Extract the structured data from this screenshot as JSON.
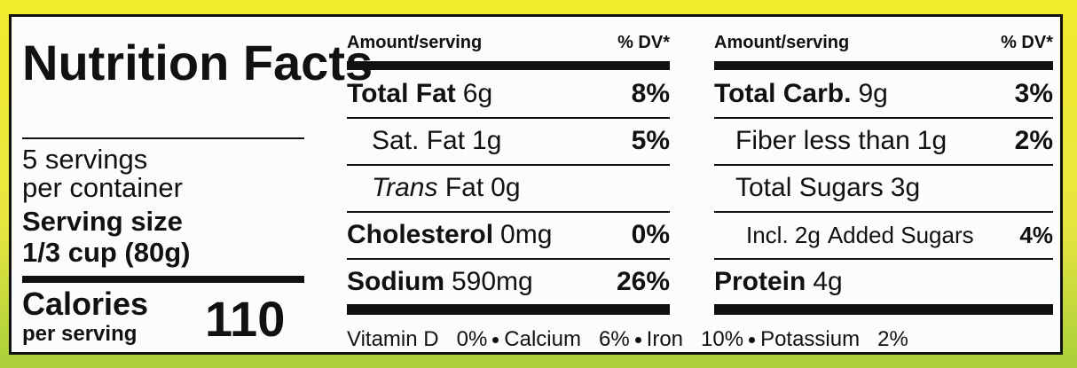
{
  "title": "Nutrition Facts",
  "servings": {
    "line1": "5 servings",
    "line2": "per container"
  },
  "serving_size": {
    "label": "Serving size",
    "value": "1/3 cup (80g)"
  },
  "calories": {
    "label": "Calories",
    "sub": "per serving",
    "value": "110"
  },
  "columns": [
    {
      "header": {
        "amount": "Amount/serving",
        "dv": "% DV*"
      },
      "rows": [
        {
          "name": "Total Fat",
          "amount": "6g",
          "dv": "8%"
        },
        {
          "name": "Sat. Fat",
          "amount": "1g",
          "dv": "5%"
        },
        {
          "name_italic": "Trans",
          "name": "Fat",
          "amount": "0g"
        },
        {
          "name": "Cholesterol",
          "amount": "0mg",
          "dv": "0%"
        },
        {
          "name": "Sodium",
          "amount": "590mg",
          "dv": "26%"
        }
      ]
    },
    {
      "header": {
        "amount": "Amount/serving",
        "dv": "% DV*"
      },
      "rows": [
        {
          "name": "Total Carb.",
          "amount": "9g",
          "dv": "3%"
        },
        {
          "name": "Fiber less than",
          "amount": "1g",
          "dv": "2%"
        },
        {
          "name": "Total Sugars",
          "amount": "3g"
        },
        {
          "name": "Incl. 2g",
          "amount": "Added Sugars",
          "dv": "4%"
        },
        {
          "name": "Protein",
          "amount": "4g"
        }
      ]
    }
  ],
  "vitamins": [
    {
      "name": "Vitamin D",
      "dv": "0%"
    },
    {
      "name": "Calcium",
      "dv": "6%"
    },
    {
      "name": "Iron",
      "dv": "10%"
    },
    {
      "name": "Potassium",
      "dv": "2%"
    }
  ]
}
